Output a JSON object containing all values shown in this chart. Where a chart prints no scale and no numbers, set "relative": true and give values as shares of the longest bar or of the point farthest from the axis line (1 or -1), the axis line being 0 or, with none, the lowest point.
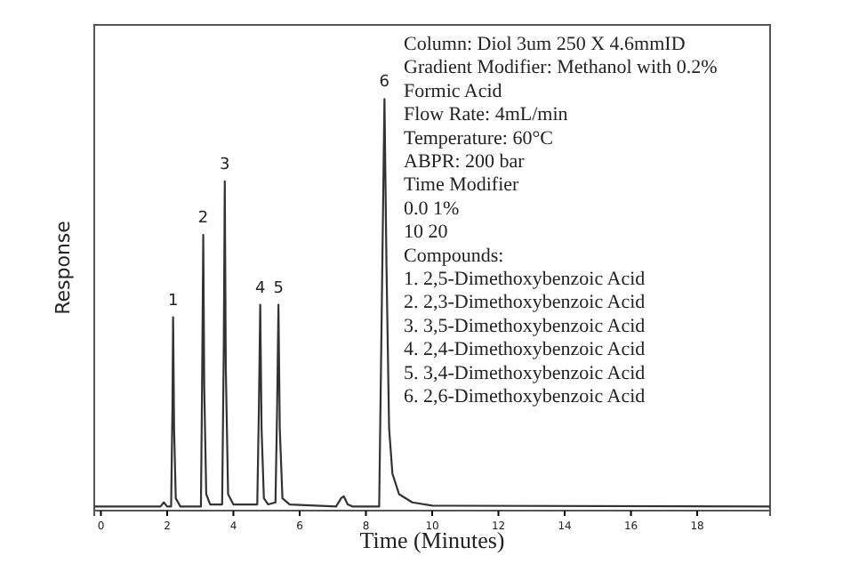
{
  "chart_data": {
    "type": "line",
    "relative": true,
    "xlabel": "Time (Minutes)",
    "ylabel": "Response",
    "xlim": [
      -0.2,
      20.2
    ],
    "xticks": [
      0,
      2,
      4,
      6,
      8,
      10,
      12,
      14,
      16,
      18
    ],
    "tick_labels": "x",
    "grid": false,
    "marker": "none",
    "line_style": "solid",
    "series": [
      {
        "color": "#333333",
        "x": [
          -0.2,
          1.8,
          1.9,
          2.0,
          2.12,
          2.16,
          2.18,
          2.21,
          2.26,
          2.4,
          3.02,
          3.06,
          3.09,
          3.12,
          3.18,
          3.3,
          3.66,
          3.71,
          3.74,
          3.77,
          3.84,
          4.0,
          4.72,
          4.77,
          4.81,
          4.85,
          4.92,
          5.05,
          5.27,
          5.32,
          5.36,
          5.4,
          5.48,
          5.7,
          7.1,
          7.25,
          7.33,
          7.45,
          7.6,
          8.4,
          8.48,
          8.56,
          8.62,
          8.7,
          8.8,
          9.0,
          9.4,
          10,
          20.2
        ],
        "values": [
          0.01,
          0.01,
          0.02,
          0.01,
          0.01,
          0.25,
          0.47,
          0.2,
          0.03,
          0.01,
          0.01,
          0.35,
          0.67,
          0.3,
          0.04,
          0.015,
          0.015,
          0.4,
          0.8,
          0.35,
          0.04,
          0.015,
          0.015,
          0.25,
          0.5,
          0.2,
          0.03,
          0.015,
          0.02,
          0.25,
          0.5,
          0.2,
          0.03,
          0.015,
          0.01,
          0.03,
          0.035,
          0.015,
          0.01,
          0.01,
          0.5,
          1,
          0.6,
          0.2,
          0.09,
          0.04,
          0.02,
          0.012,
          0.01
        ]
      }
    ],
    "annotations": [
      {
        "text": "1",
        "x": 2.18,
        "y": 0.47
      },
      {
        "text": "2",
        "x": 3.09,
        "y": 0.67
      },
      {
        "text": "3",
        "x": 3.74,
        "y": 0.8
      },
      {
        "text": "4",
        "x": 4.81,
        "y": 0.5
      },
      {
        "text": "5",
        "x": 5.36,
        "y": 0.5
      },
      {
        "text": "6",
        "x": 8.56,
        "y": 1
      },
      "Column: Diol 3um 250 X 4.6mmID",
      "Gradient Modifier: Methanol with 0.2% Formic Acid",
      "Flow Rate: 4mL/min",
      "Temperature: 60°C",
      "ABPR: 200 bar",
      "Time Modifier",
      "0.0 1%",
      "10 20",
      "Compounds:",
      "1. 2,5-Dimethoxybenzoic Acid",
      "2. 2,3-Dimethoxybenzoic Acid",
      "3. 3,5-Dimethoxybenzoic Acid",
      "4. 2,4-Dimethoxybenzoic Acid",
      "5. 3,4-Dimethoxybenzoic Acid",
      "6. 2,6-Dimethoxybenzoic Acid"
    ]
  }
}
